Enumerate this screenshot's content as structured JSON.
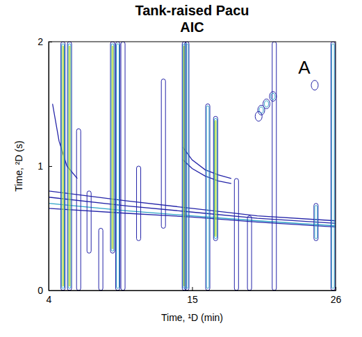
{
  "chart_data": {
    "type": "contour",
    "title": "Tank-raised Pacu",
    "subtitle": "AIC",
    "x_label": "Time, ¹D (min)",
    "y_label": "Time, ²D (s)",
    "xlim": [
      4,
      26
    ],
    "ylim": [
      0,
      2
    ],
    "xticks": [
      4,
      15,
      26
    ],
    "yticks": [
      0,
      1,
      2
    ],
    "levels": [
      1,
      2,
      3
    ],
    "colors": [
      "#2323a8",
      "#2aa3c6",
      "#b8d62c"
    ],
    "annotations": [
      {
        "text": "A",
        "x": 23.6,
        "y": 1.78
      }
    ],
    "streaks": [
      {
        "x": 5.1,
        "y_start": 0,
        "y_end": 2,
        "level": 3
      },
      {
        "x": 5.6,
        "y_start": 0,
        "y_end": 2,
        "level": 3
      },
      {
        "x": 6.3,
        "y_start": 0,
        "y_end": 1.3,
        "level": 1
      },
      {
        "x": 7.1,
        "y_start": 0.3,
        "y_end": 0.8,
        "level": 1
      },
      {
        "x": 8.0,
        "y_start": 0,
        "y_end": 0.5,
        "level": 1
      },
      {
        "x": 8.9,
        "y_start": 0.3,
        "y_end": 2,
        "level": 3
      },
      {
        "x": 9.3,
        "y_start": 0,
        "y_end": 2,
        "level": 2
      },
      {
        "x": 9.7,
        "y_start": 0,
        "y_end": 2,
        "level": 1
      },
      {
        "x": 10.9,
        "y_start": 0.4,
        "y_end": 1.0,
        "level": 1
      },
      {
        "x": 12.8,
        "y_start": 0.5,
        "y_end": 1.7,
        "level": 1
      },
      {
        "x": 14.4,
        "y_start": 0,
        "y_end": 2,
        "level": 3
      },
      {
        "x": 14.6,
        "y_start": 0,
        "y_end": 2,
        "level": 2
      },
      {
        "x": 16.2,
        "y_start": 0,
        "y_end": 1.5,
        "level": 2
      },
      {
        "x": 16.8,
        "y_start": 0.4,
        "y_end": 1.4,
        "level": 3
      },
      {
        "x": 18.4,
        "y_start": 0,
        "y_end": 0.9,
        "level": 1
      },
      {
        "x": 19.4,
        "y_start": 0,
        "y_end": 0.6,
        "level": 1
      },
      {
        "x": 21.3,
        "y_start": 0,
        "y_end": 2,
        "level": 1
      },
      {
        "x": 24.5,
        "y_start": 0.4,
        "y_end": 0.7,
        "level": 2
      },
      {
        "x": 25.8,
        "y_start": 0,
        "y_end": 2,
        "level": 2
      }
    ],
    "bands": [
      {
        "x": [
          4,
          10,
          15,
          20,
          26
        ],
        "y": [
          0.8,
          0.72,
          0.66,
          0.6,
          0.56
        ],
        "level": 1
      },
      {
        "x": [
          4,
          10,
          15,
          20,
          26
        ],
        "y": [
          0.75,
          0.68,
          0.63,
          0.58,
          0.54
        ],
        "level": 1
      },
      {
        "x": [
          4,
          10,
          15,
          20,
          26
        ],
        "y": [
          0.7,
          0.64,
          0.6,
          0.56,
          0.52
        ],
        "level": 2
      },
      {
        "x": [
          4,
          10,
          15,
          20,
          26
        ],
        "y": [
          0.66,
          0.62,
          0.59,
          0.55,
          0.51
        ],
        "level": 1
      },
      {
        "x": [
          14.3,
          15,
          16,
          17,
          18
        ],
        "y": [
          1.15,
          1.05,
          0.97,
          0.93,
          0.9
        ],
        "level": 1
      },
      {
        "x": [
          14.3,
          15,
          16,
          17,
          18
        ],
        "y": [
          1.05,
          0.98,
          0.92,
          0.88,
          0.86
        ],
        "level": 1
      },
      {
        "x": [
          4.3,
          4.8,
          5.4,
          6.2
        ],
        "y": [
          1.5,
          1.2,
          1.0,
          0.9
        ],
        "level": 1
      }
    ],
    "spots": [
      {
        "x": 20.3,
        "y": 1.45,
        "level": 2
      },
      {
        "x": 20.7,
        "y": 1.5,
        "level": 2
      },
      {
        "x": 20.1,
        "y": 1.4,
        "level": 1
      },
      {
        "x": 21.2,
        "y": 1.56,
        "level": 2
      },
      {
        "x": 24.4,
        "y": 1.65,
        "level": 1
      }
    ]
  }
}
